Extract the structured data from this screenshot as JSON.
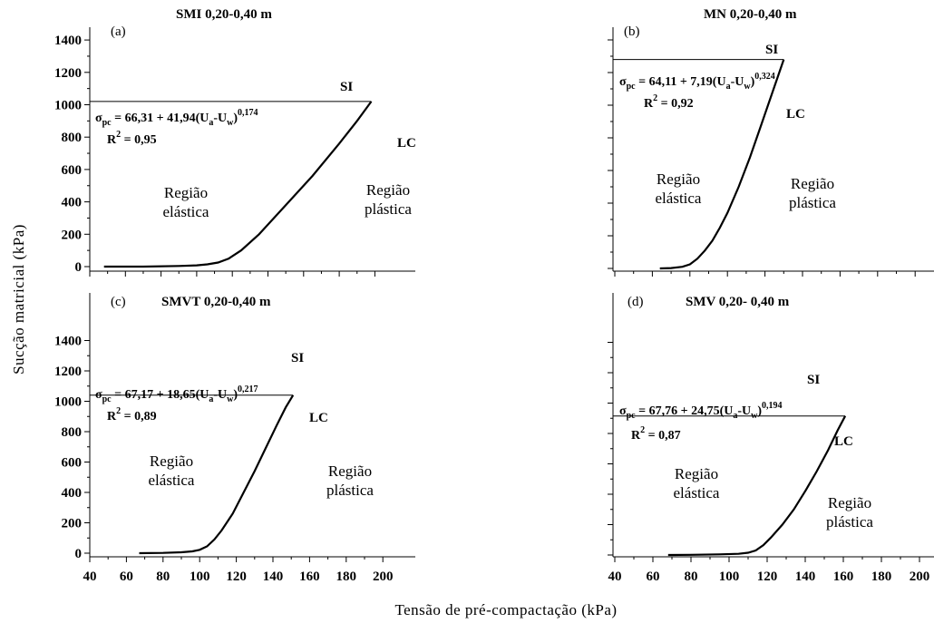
{
  "figure": {
    "ylabel": "Sucção matricial (kPa)",
    "xlabel": "Tensão de pré-compactação (kPa)"
  },
  "chart_data": [
    {
      "type": "line",
      "panel": "(a)",
      "title": "SMI  0,20-0,40 m",
      "xlim": [
        40,
        200
      ],
      "ylim": [
        0,
        1400
      ],
      "xticks": [
        "40",
        "60",
        "80",
        "100",
        "120",
        "140",
        "160",
        "180",
        "200"
      ],
      "yticks": [
        "0",
        "200",
        "400",
        "600",
        "800",
        "1000",
        "1200",
        "1400"
      ],
      "show_x_tick_labels": false,
      "show_y_tick_labels": true,
      "si_y": 1020,
      "equation": {
        "a": "66,31",
        "b": "41,94",
        "exp": "0,174",
        "r2": "0,95"
      },
      "curve_label_si": "SI",
      "curve_label_lc": "LC",
      "region_elastic": [
        "Região",
        "elástica"
      ],
      "region_plastic": [
        "Região",
        "plástica"
      ],
      "series": [
        {
          "x": [
            48,
            70,
            90,
            100,
            106,
            112,
            118,
            125,
            135,
            150,
            165,
            180,
            190,
            198
          ],
          "y": [
            0,
            0,
            4,
            8,
            14,
            25,
            50,
            100,
            200,
            380,
            560,
            760,
            900,
            1020
          ]
        }
      ]
    },
    {
      "type": "line",
      "panel": "(b)",
      "title": "MN  0,20-0,40 m",
      "xlim": [
        40,
        200
      ],
      "ylim": [
        0,
        1400
      ],
      "xticks": [
        "40",
        "60",
        "80",
        "100",
        "120",
        "140",
        "160",
        "180",
        "200"
      ],
      "yticks": [
        "0",
        "200",
        "400",
        "600",
        "800",
        "1000",
        "1200",
        "1400"
      ],
      "show_x_tick_labels": false,
      "show_y_tick_labels": false,
      "si_y": 1280,
      "equation": {
        "a": "64,11",
        "b": "7,19",
        "exp": "0,324",
        "r2": "0,92"
      },
      "curve_label_si": "SI",
      "curve_label_lc": "LC",
      "region_elastic": [
        "Região",
        "elástica"
      ],
      "region_plastic": [
        "Região",
        "plástica"
      ],
      "series": [
        {
          "x": [
            64,
            70,
            76,
            80,
            84,
            88,
            92,
            96,
            100,
            106,
            112,
            118,
            124,
            130
          ],
          "y": [
            0,
            2,
            10,
            25,
            60,
            110,
            170,
            250,
            340,
            500,
            680,
            880,
            1080,
            1280
          ]
        }
      ]
    },
    {
      "type": "line",
      "panel": "(c)",
      "title": "SMVT  0,20-0,40 m",
      "xlim": [
        40,
        200
      ],
      "ylim": [
        0,
        1400
      ],
      "xticks": [
        "40",
        "60",
        "80",
        "100",
        "120",
        "140",
        "160",
        "180",
        "200"
      ],
      "yticks": [
        "0",
        "200",
        "400",
        "600",
        "800",
        "1000",
        "1200",
        "1400"
      ],
      "show_x_tick_labels": true,
      "show_y_tick_labels": true,
      "si_y": 1040,
      "equation": {
        "a": "67,17",
        "b": "18,65",
        "exp": "0,217",
        "r2": "0,89"
      },
      "curve_label_si": "SI",
      "curve_label_lc": "LC",
      "region_elastic": [
        "Região",
        "elástica"
      ],
      "region_plastic": [
        "Região",
        "plástica"
      ],
      "series": [
        {
          "x": [
            67,
            80,
            90,
            96,
            100,
            104,
            108,
            112,
            118,
            124,
            130,
            136,
            142,
            147,
            151
          ],
          "y": [
            0,
            2,
            6,
            12,
            22,
            45,
            90,
            150,
            260,
            400,
            540,
            690,
            840,
            960,
            1040
          ]
        }
      ]
    },
    {
      "type": "line",
      "panel": "(d)",
      "title": "SMV  0,20- 0,40 m",
      "xlim": [
        40,
        200
      ],
      "ylim": [
        0,
        1400
      ],
      "xticks": [
        "40",
        "60",
        "80",
        "100",
        "120",
        "140",
        "160",
        "180",
        "200"
      ],
      "yticks": [
        "0",
        "200",
        "400",
        "600",
        "800",
        "1000",
        "1200",
        "1400"
      ],
      "show_x_tick_labels": true,
      "show_y_tick_labels": false,
      "si_y": 915,
      "equation": {
        "a": "67,76",
        "b": "24,75",
        "exp": "0,194",
        "r2": "0,87"
      },
      "curve_label_si": "SI",
      "curve_label_lc": "LC",
      "region_elastic": [
        "Região",
        "elástica"
      ],
      "region_plastic": [
        "Região",
        "plástica"
      ],
      "series": [
        {
          "x": [
            68,
            80,
            95,
            105,
            110,
            114,
            118,
            122,
            128,
            134,
            140,
            146,
            152,
            157,
            161
          ],
          "y": [
            0,
            1,
            4,
            8,
            15,
            30,
            65,
            115,
            200,
            300,
            420,
            550,
            690,
            820,
            915
          ]
        }
      ]
    }
  ]
}
